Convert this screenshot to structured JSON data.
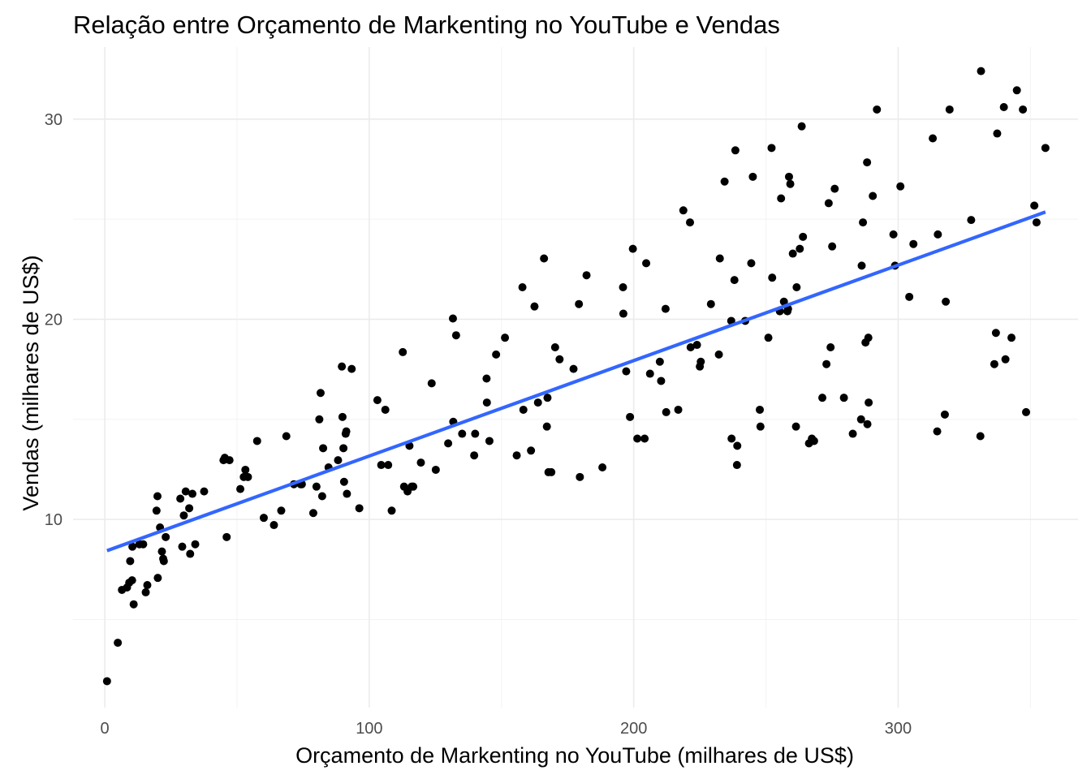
{
  "chart_data": {
    "type": "scatter",
    "title": "Relação entre Orçamento de Markenting no YouTube e Vendas",
    "xlabel": "Orçamento de Markenting no YouTube (milhares de US$)",
    "ylabel": "Vendas (milhares de US$)",
    "xlim": [
      -12,
      368
    ],
    "ylim": [
      0.6,
      33.6
    ],
    "x_ticks": [
      0,
      100,
      200,
      300
    ],
    "x_tick_labels": [
      "0",
      "100",
      "200",
      "300"
    ],
    "y_ticks": [
      10,
      20,
      30
    ],
    "y_tick_labels": [
      "10",
      "20",
      "30"
    ],
    "x_minor_ticks": [
      50,
      150,
      250,
      350
    ],
    "y_minor_ticks": [
      5,
      15,
      25
    ],
    "grid": true,
    "colors": {
      "points": "#000000",
      "trend": "#3366FF",
      "grid": "#EBEBEB"
    },
    "trend_line": {
      "type": "linear",
      "x": [
        0.84,
        355.68
      ],
      "y": [
        8.44,
        25.36
      ]
    },
    "points": [
      [
        0.84,
        1.92
      ],
      [
        4.92,
        3.84
      ],
      [
        6.48,
        6.48
      ],
      [
        8.4,
        6.6
      ],
      [
        9.24,
        6.84
      ],
      [
        9.6,
        7.92
      ],
      [
        10.32,
        6.96
      ],
      [
        10.44,
        8.64
      ],
      [
        10.92,
        5.76
      ],
      [
        13.08,
        8.76
      ],
      [
        14.52,
        8.76
      ],
      [
        15.48,
        6.36
      ],
      [
        16.08,
        6.72
      ],
      [
        19.56,
        10.44
      ],
      [
        19.92,
        11.16
      ],
      [
        20.04,
        7.08
      ],
      [
        20.88,
        9.6
      ],
      [
        21.6,
        8.4
      ],
      [
        22.08,
        8.04
      ],
      [
        22.32,
        7.92
      ],
      [
        23.04,
        9.12
      ],
      [
        28.56,
        11.04
      ],
      [
        29.28,
        8.64
      ],
      [
        29.88,
        10.2
      ],
      [
        30.6,
        11.4
      ],
      [
        31.92,
        10.56
      ],
      [
        32.28,
        8.28
      ],
      [
        33.12,
        11.28
      ],
      [
        34.2,
        8.76
      ],
      [
        37.56,
        11.4
      ],
      [
        44.88,
        12.96
      ],
      [
        45.36,
        13.08
      ],
      [
        46.08,
        9.12
      ],
      [
        47.16,
        12.96
      ],
      [
        51.24,
        11.52
      ],
      [
        52.56,
        12.12
      ],
      [
        53.16,
        12.48
      ],
      [
        54.12,
        12.12
      ],
      [
        57.6,
        13.92
      ],
      [
        60.12,
        10.08
      ],
      [
        63.96,
        9.72
      ],
      [
        66.72,
        10.44
      ],
      [
        68.64,
        14.16
      ],
      [
        71.52,
        11.76
      ],
      [
        74.04,
        11.76
      ],
      [
        74.52,
        11.76
      ],
      [
        78.84,
        10.32
      ],
      [
        80.04,
        11.64
      ],
      [
        81.12,
        15.0
      ],
      [
        81.6,
        16.32
      ],
      [
        82.2,
        11.16
      ],
      [
        82.56,
        13.56
      ],
      [
        84.6,
        12.6
      ],
      [
        88.2,
        12.96
      ],
      [
        89.64,
        17.64
      ],
      [
        89.88,
        15.12
      ],
      [
        90.24,
        13.56
      ],
      [
        90.48,
        11.88
      ],
      [
        91.08,
        14.28
      ],
      [
        91.32,
        14.4
      ],
      [
        91.56,
        11.28
      ],
      [
        93.36,
        17.52
      ],
      [
        96.24,
        10.56
      ],
      [
        103.08,
        15.96
      ],
      [
        104.52,
        12.72
      ],
      [
        106.08,
        15.48
      ],
      [
        107.16,
        12.72
      ],
      [
        108.48,
        10.44
      ],
      [
        112.68,
        18.36
      ],
      [
        113.16,
        11.64
      ],
      [
        114.48,
        11.4
      ],
      [
        115.2,
        13.68
      ],
      [
        116.04,
        11.64
      ],
      [
        116.64,
        11.64
      ],
      [
        119.52,
        12.84
      ],
      [
        123.6,
        16.8
      ],
      [
        125.16,
        12.48
      ],
      [
        129.84,
        13.8
      ],
      [
        131.64,
        20.04
      ],
      [
        131.76,
        14.88
      ],
      [
        132.84,
        19.2
      ],
      [
        135.12,
        14.28
      ],
      [
        139.68,
        13.2
      ],
      [
        140.04,
        14.28
      ],
      [
        144.36,
        17.04
      ],
      [
        144.48,
        15.84
      ],
      [
        145.44,
        13.92
      ],
      [
        147.96,
        18.24
      ],
      [
        151.32,
        19.08
      ],
      [
        155.76,
        13.2
      ],
      [
        157.92,
        21.6
      ],
      [
        158.28,
        15.48
      ],
      [
        161.16,
        13.44
      ],
      [
        162.48,
        20.64
      ],
      [
        163.8,
        15.84
      ],
      [
        166.08,
        23.04
      ],
      [
        167.16,
        14.64
      ],
      [
        167.4,
        16.08
      ],
      [
        167.76,
        12.36
      ],
      [
        168.84,
        12.36
      ],
      [
        170.28,
        18.6
      ],
      [
        171.96,
        18.0
      ],
      [
        177.24,
        17.52
      ],
      [
        179.28,
        20.76
      ],
      [
        179.64,
        12.12
      ],
      [
        182.16,
        22.2
      ],
      [
        188.16,
        12.6
      ],
      [
        195.96,
        21.6
      ],
      [
        196.08,
        20.28
      ],
      [
        197.16,
        17.4
      ],
      [
        198.6,
        15.12
      ],
      [
        199.68,
        23.52
      ],
      [
        201.36,
        14.04
      ],
      [
        204.12,
        14.04
      ],
      [
        204.72,
        22.8
      ],
      [
        206.16,
        17.28
      ],
      [
        209.88,
        17.88
      ],
      [
        210.36,
        16.92
      ],
      [
        212.04,
        20.52
      ],
      [
        212.28,
        15.36
      ],
      [
        216.84,
        15.48
      ],
      [
        218.76,
        25.44
      ],
      [
        221.28,
        24.84
      ],
      [
        221.52,
        18.6
      ],
      [
        223.92,
        18.72
      ],
      [
        225.0,
        17.64
      ],
      [
        225.36,
        17.88
      ],
      [
        229.2,
        20.76
      ],
      [
        232.2,
        18.24
      ],
      [
        232.56,
        23.04
      ],
      [
        234.36,
        26.88
      ],
      [
        236.88,
        19.92
      ],
      [
        237.0,
        14.04
      ],
      [
        238.08,
        21.96
      ],
      [
        238.44,
        28.44
      ],
      [
        239.04,
        12.72
      ],
      [
        239.16,
        13.68
      ],
      [
        242.16,
        19.92
      ],
      [
        244.44,
        22.8
      ],
      [
        245.04,
        27.12
      ],
      [
        247.68,
        15.48
      ],
      [
        247.92,
        14.64
      ],
      [
        250.92,
        19.08
      ],
      [
        252.12,
        28.56
      ],
      [
        252.36,
        22.08
      ],
      [
        255.24,
        20.4
      ],
      [
        255.72,
        26.04
      ],
      [
        256.8,
        20.88
      ],
      [
        258.12,
        20.4
      ],
      [
        258.36,
        20.52
      ],
      [
        258.72,
        27.12
      ],
      [
        259.2,
        26.76
      ],
      [
        260.16,
        23.28
      ],
      [
        261.36,
        14.64
      ],
      [
        261.6,
        21.6
      ],
      [
        262.8,
        23.52
      ],
      [
        263.52,
        29.64
      ],
      [
        264.0,
        24.12
      ],
      [
        266.28,
        13.8
      ],
      [
        267.36,
        14.04
      ],
      [
        268.2,
        13.92
      ],
      [
        271.32,
        16.08
      ],
      [
        272.88,
        17.76
      ],
      [
        273.72,
        25.8
      ],
      [
        274.44,
        18.6
      ],
      [
        275.04,
        23.64
      ],
      [
        276.0,
        26.52
      ],
      [
        279.48,
        16.08
      ],
      [
        282.84,
        14.28
      ],
      [
        285.96,
        15.0
      ],
      [
        286.2,
        22.68
      ],
      [
        286.68,
        24.84
      ],
      [
        287.64,
        18.84
      ],
      [
        288.24,
        27.84
      ],
      [
        288.36,
        14.76
      ],
      [
        288.72,
        19.08
      ],
      [
        288.84,
        15.84
      ],
      [
        290.4,
        26.16
      ],
      [
        291.96,
        30.48
      ],
      [
        298.2,
        24.24
      ],
      [
        298.8,
        22.68
      ],
      [
        300.84,
        26.64
      ],
      [
        304.2,
        21.12
      ],
      [
        305.76,
        23.76
      ],
      [
        313.08,
        29.04
      ],
      [
        314.76,
        14.4
      ],
      [
        315.0,
        24.24
      ],
      [
        317.64,
        15.24
      ],
      [
        318.0,
        20.88
      ],
      [
        319.44,
        30.48
      ],
      [
        327.6,
        24.96
      ],
      [
        331.08,
        14.16
      ],
      [
        331.32,
        32.4
      ],
      [
        336.36,
        17.76
      ],
      [
        336.96,
        19.32
      ],
      [
        337.44,
        29.28
      ],
      [
        339.96,
        30.6
      ],
      [
        340.56,
        18.0
      ],
      [
        342.84,
        19.08
      ],
      [
        344.88,
        31.44
      ],
      [
        347.16,
        30.48
      ],
      [
        348.36,
        15.36
      ],
      [
        351.48,
        25.68
      ],
      [
        352.32,
        24.84
      ],
      [
        355.68,
        28.56
      ]
    ]
  }
}
